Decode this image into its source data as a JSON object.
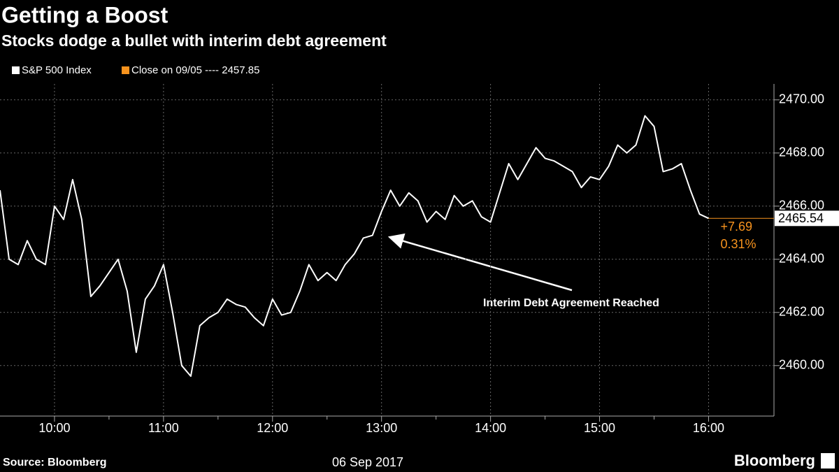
{
  "chart_data": {
    "type": "line",
    "title": "Getting a Boost",
    "subtitle": "Stocks dodge a bullet with interim debt agreement",
    "x_label": "06 Sep 2017",
    "source": "Source: Bloomberg",
    "brand": "Bloomberg",
    "x": [
      570,
      575,
      580,
      585,
      590,
      595,
      600,
      605,
      610,
      615,
      620,
      625,
      630,
      635,
      640,
      645,
      650,
      655,
      660,
      665,
      670,
      675,
      680,
      685,
      690,
      695,
      700,
      705,
      710,
      715,
      720,
      725,
      730,
      735,
      740,
      745,
      750,
      755,
      760,
      765,
      770,
      775,
      780,
      785,
      790,
      795,
      800,
      805,
      810,
      815,
      820,
      825,
      830,
      835,
      840,
      845,
      850,
      855,
      860,
      865,
      870,
      875,
      880,
      885,
      890,
      895,
      900,
      905,
      910,
      915,
      920,
      925,
      930,
      935,
      940,
      945,
      950,
      955,
      960
    ],
    "series": [
      {
        "name": "S&P 500 Index",
        "color": "#ffffff",
        "values": [
          2466.6,
          2464.0,
          2463.8,
          2464.7,
          2464.0,
          2463.8,
          2466.0,
          2465.5,
          2467.0,
          2465.5,
          2462.6,
          2463.0,
          2463.5,
          2464.0,
          2462.8,
          2460.5,
          2462.5,
          2463.0,
          2463.8,
          2462.0,
          2460.0,
          2459.6,
          2461.5,
          2461.8,
          2462.0,
          2462.5,
          2462.3,
          2462.2,
          2461.8,
          2461.5,
          2462.5,
          2461.9,
          2462.0,
          2462.8,
          2463.8,
          2463.2,
          2463.5,
          2463.2,
          2463.8,
          2464.2,
          2464.8,
          2464.9,
          2465.8,
          2466.6,
          2466.0,
          2466.5,
          2466.2,
          2465.4,
          2465.8,
          2465.5,
          2466.4,
          2466.0,
          2466.2,
          2465.6,
          2465.4,
          2466.5,
          2467.6,
          2467.0,
          2467.6,
          2468.2,
          2467.8,
          2467.7,
          2467.5,
          2467.3,
          2466.7,
          2467.1,
          2467.0,
          2467.5,
          2468.3,
          2468.0,
          2468.3,
          2469.4,
          2469.0,
          2467.3,
          2467.4,
          2467.6,
          2466.6,
          2465.7,
          2465.54
        ]
      }
    ],
    "reference": {
      "name": "Close on 09/05 ----",
      "value": 2457.85,
      "color": "#f7931e"
    },
    "change_label": "+7.69",
    "change_pct_label": "0.31%",
    "annotation": "Interim Debt Agreement Reached",
    "xlim": [
      570,
      996
    ],
    "xticks": [
      {
        "value": 600,
        "label": "10:00"
      },
      {
        "value": 660,
        "label": "11:00"
      },
      {
        "value": 720,
        "label": "12:00"
      },
      {
        "value": 780,
        "label": "13:00"
      },
      {
        "value": 840,
        "label": "14:00"
      },
      {
        "value": 900,
        "label": "15:00"
      },
      {
        "value": 960,
        "label": "16:00"
      }
    ],
    "xminorticks": [
      630,
      690,
      750,
      810,
      870,
      930
    ],
    "ylim": [
      2458.1,
      2470.6
    ],
    "yticks": [
      {
        "value": 2460,
        "label": "2460.00"
      },
      {
        "value": 2462,
        "label": "2462.00"
      },
      {
        "value": 2464,
        "label": "2464.00"
      },
      {
        "value": 2466,
        "label": "2466.00"
      },
      {
        "value": 2468,
        "label": "2468.00"
      },
      {
        "value": 2470,
        "label": "2470.00"
      }
    ],
    "grid": true
  }
}
